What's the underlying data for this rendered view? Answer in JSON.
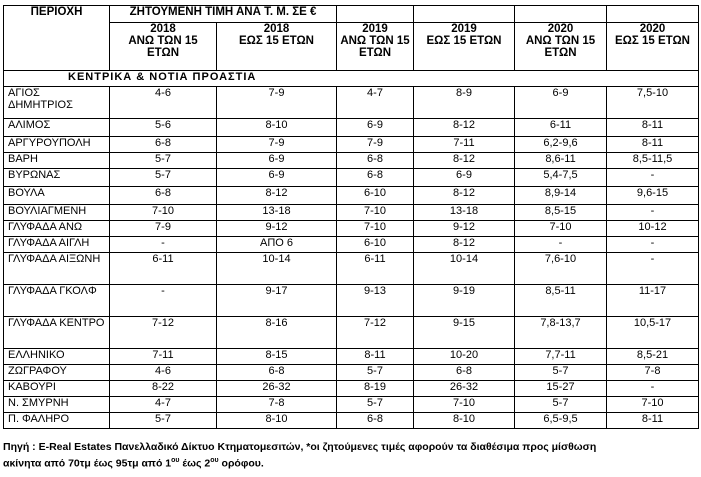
{
  "header": {
    "region_label": "ΠΕΡΙΟΧΗ",
    "price_title": "ΖΗΤΟΥΜΕΝΗ ΤΙΜΗ ΑΝΑ  Τ. Μ. ΣΕ €",
    "columns": [
      {
        "year": "2018",
        "age": "ΑΝΩ ΤΩΝ 15 ΕΤΩΝ"
      },
      {
        "year": "2018",
        "age": "ΕΩΣ 15 ΕΤΩΝ"
      },
      {
        "year": "2019",
        "age": "ΑΝΩ ΤΩΝ 15 ΕΤΩΝ"
      },
      {
        "year": "2019",
        "age": "ΕΩΣ 15 ΕΤΩΝ"
      },
      {
        "year": "2020",
        "age": "ΑΝΩ ΤΩΝ 15 ΕΤΩΝ"
      },
      {
        "year": "2020",
        "age": "ΕΩΣ 15 ΕΤΩΝ"
      }
    ]
  },
  "section_title": "ΚΕΝΤΡΙΚΑ & ΝΟΤΙΑ ΠΡΟΑΣΤΙΑ",
  "rows": [
    {
      "region": "ΑΓΙΟΣ ΔΗΜΗΤΡΙΟΣ",
      "v": [
        "4-6",
        "7-9",
        "4-7",
        "8-9",
        "6-9",
        "7,5-10"
      ]
    },
    {
      "region": "ΑΛΙΜΟΣ",
      "v": [
        "5-6",
        "8-10",
        "6-9",
        "8-12",
        "6-11",
        "8-11"
      ]
    },
    {
      "region": "ΑΡΓΥΡΟΥΠΟΛΗ",
      "v": [
        "6-8",
        "7-9",
        "7-9",
        "7-11",
        "6,2-9,6",
        "8-11"
      ]
    },
    {
      "region": "ΒΑΡΗ",
      "v": [
        "5-7",
        "6-9",
        "6-8",
        "8-12",
        "8,6-11",
        "8,5-11,5"
      ]
    },
    {
      "region": "ΒΥΡΩΝΑΣ",
      "v": [
        "5-7",
        "6-9",
        "6-8",
        "6-9",
        "5,4-7,5",
        "-"
      ]
    },
    {
      "region": "ΒΟΥΛΑ",
      "v": [
        "6-8",
        "8-12",
        "6-10",
        "8-12",
        "8,9-14",
        "9,6-15"
      ]
    },
    {
      "region": "ΒΟΥΛΙΑΓΜΕΝΗ",
      "v": [
        "7-10",
        "13-18",
        "7-10",
        "13-18",
        "8,5-15",
        "-"
      ]
    },
    {
      "region": "ΓΛΥΦΑΔΑ ΑΝΩ",
      "v": [
        "7-9",
        "9-12",
        "7-10",
        "9-12",
        "7-10",
        "10-12"
      ]
    },
    {
      "region": "ΓΛΥΦΑΔΑ ΑΙΓΛΗ",
      "v": [
        "-",
        "ΑΠΟ 6",
        "6-10",
        "8-12",
        "-",
        "-"
      ]
    },
    {
      "region": "ΓΛΥΦΑΔΑ ΑΙΞΩΝΗ",
      "v": [
        "6-11",
        "10-14",
        "6-11",
        "10-14",
        "7,6-10",
        "-"
      ]
    },
    {
      "region": "ΓΛΥΦΑΔΑ ΓΚΟΛΦ",
      "v": [
        "-",
        "9-17",
        "9-13",
        "9-19",
        "8,5-11",
        "11-17"
      ]
    },
    {
      "region": "ΓΛΥΦΑΔΑ ΚΕΝΤΡΟ",
      "v": [
        "7-12",
        "8-16",
        "7-12",
        "9-15",
        "7,8-13,7",
        "10,5-17"
      ]
    },
    {
      "region": "ΕΛΛΗΝΙΚΟ",
      "v": [
        "7-11",
        "8-15",
        "8-11",
        "10-20",
        "7,7-11",
        "8,5-21"
      ]
    },
    {
      "region": "ΖΩΓΡΑΦΟΥ",
      "v": [
        "4-6",
        "6-8",
        "5-7",
        "6-8",
        "5-7",
        "7-8"
      ]
    },
    {
      "region": "ΚΑΒΟΥΡΙ",
      "v": [
        "8-22",
        "26-32",
        "8-19",
        "26-32",
        "15-27",
        "-"
      ]
    },
    {
      "region": "Ν. ΣΜΥΡΝΗ",
      "v": [
        "4-7",
        "7-8",
        "5-7",
        "7-10",
        "5-7",
        "7-10"
      ]
    },
    {
      "region": "Π. ΦΑΛΗΡΟ",
      "v": [
        "5-7",
        "8-10",
        "6-8",
        "8-10",
        "6,5-9,5",
        "8-11"
      ]
    }
  ],
  "footnote": {
    "line1": "Πηγή : E-Real Estates Πανελλαδικό Δίκτυο Κτηματομεσιτών, *οι ζητούμενες τιμές αφορούν τα διαθέσιμα προς μίσθωση",
    "line2_pre": "ακίνητα από 70τμ έως 95τμ  από 1",
    "sup1": "ου",
    "line2_mid": " έως 2",
    "sup2": "ου",
    "line2_post": " ορόφου."
  }
}
